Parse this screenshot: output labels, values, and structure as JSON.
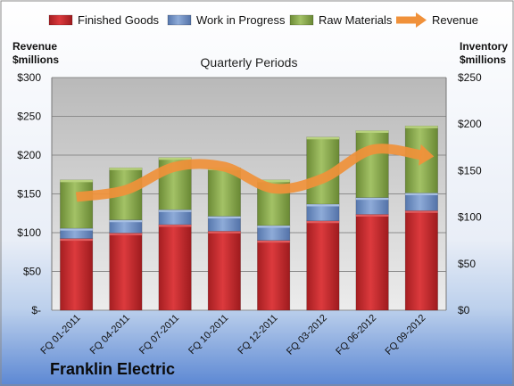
{
  "chart_data": {
    "type": "bar",
    "title": "Quarterly Periods",
    "brand": "Franklin Electric",
    "left_axis_title": [
      "Revenue",
      "$millions"
    ],
    "right_axis_title": [
      "Inventory",
      "$millions"
    ],
    "categories": [
      "FQ 01-2011",
      "FQ 04-2011",
      "FQ 07-2011",
      "FQ 10-2011",
      "FQ 12-2011",
      "FQ 03-2012",
      "FQ 06-2012",
      "FQ 09-2012"
    ],
    "left_ticks": [
      "$-",
      "$50",
      "$100",
      "$150",
      "$200",
      "$250",
      "$300"
    ],
    "right_ticks": [
      "$0",
      "$50",
      "$100",
      "$150",
      "$200",
      "$250"
    ],
    "left_ylim": [
      0,
      300
    ],
    "right_ylim": [
      0,
      250
    ],
    "stacked_axis": "right",
    "series": [
      {
        "name": "Finished Goods",
        "kind": "bar",
        "color": "#c0282b",
        "values": [
          77,
          83,
          92,
          85,
          75,
          96,
          103,
          107
        ]
      },
      {
        "name": "Work in Progress",
        "kind": "bar",
        "color": "#6d8fc4",
        "values": [
          11,
          14,
          16,
          16,
          16,
          18,
          18,
          19
        ]
      },
      {
        "name": "Raw Materials",
        "kind": "bar",
        "color": "#86a74a",
        "values": [
          52,
          56,
          56,
          52,
          49,
          72,
          72,
          72
        ]
      },
      {
        "name": "Revenue",
        "kind": "line",
        "color": "#f0913a",
        "axis": "left",
        "values": [
          146,
          155,
          185,
          185,
          157,
          170,
          207,
          200
        ]
      }
    ],
    "legend_position": "top",
    "grid": true
  }
}
